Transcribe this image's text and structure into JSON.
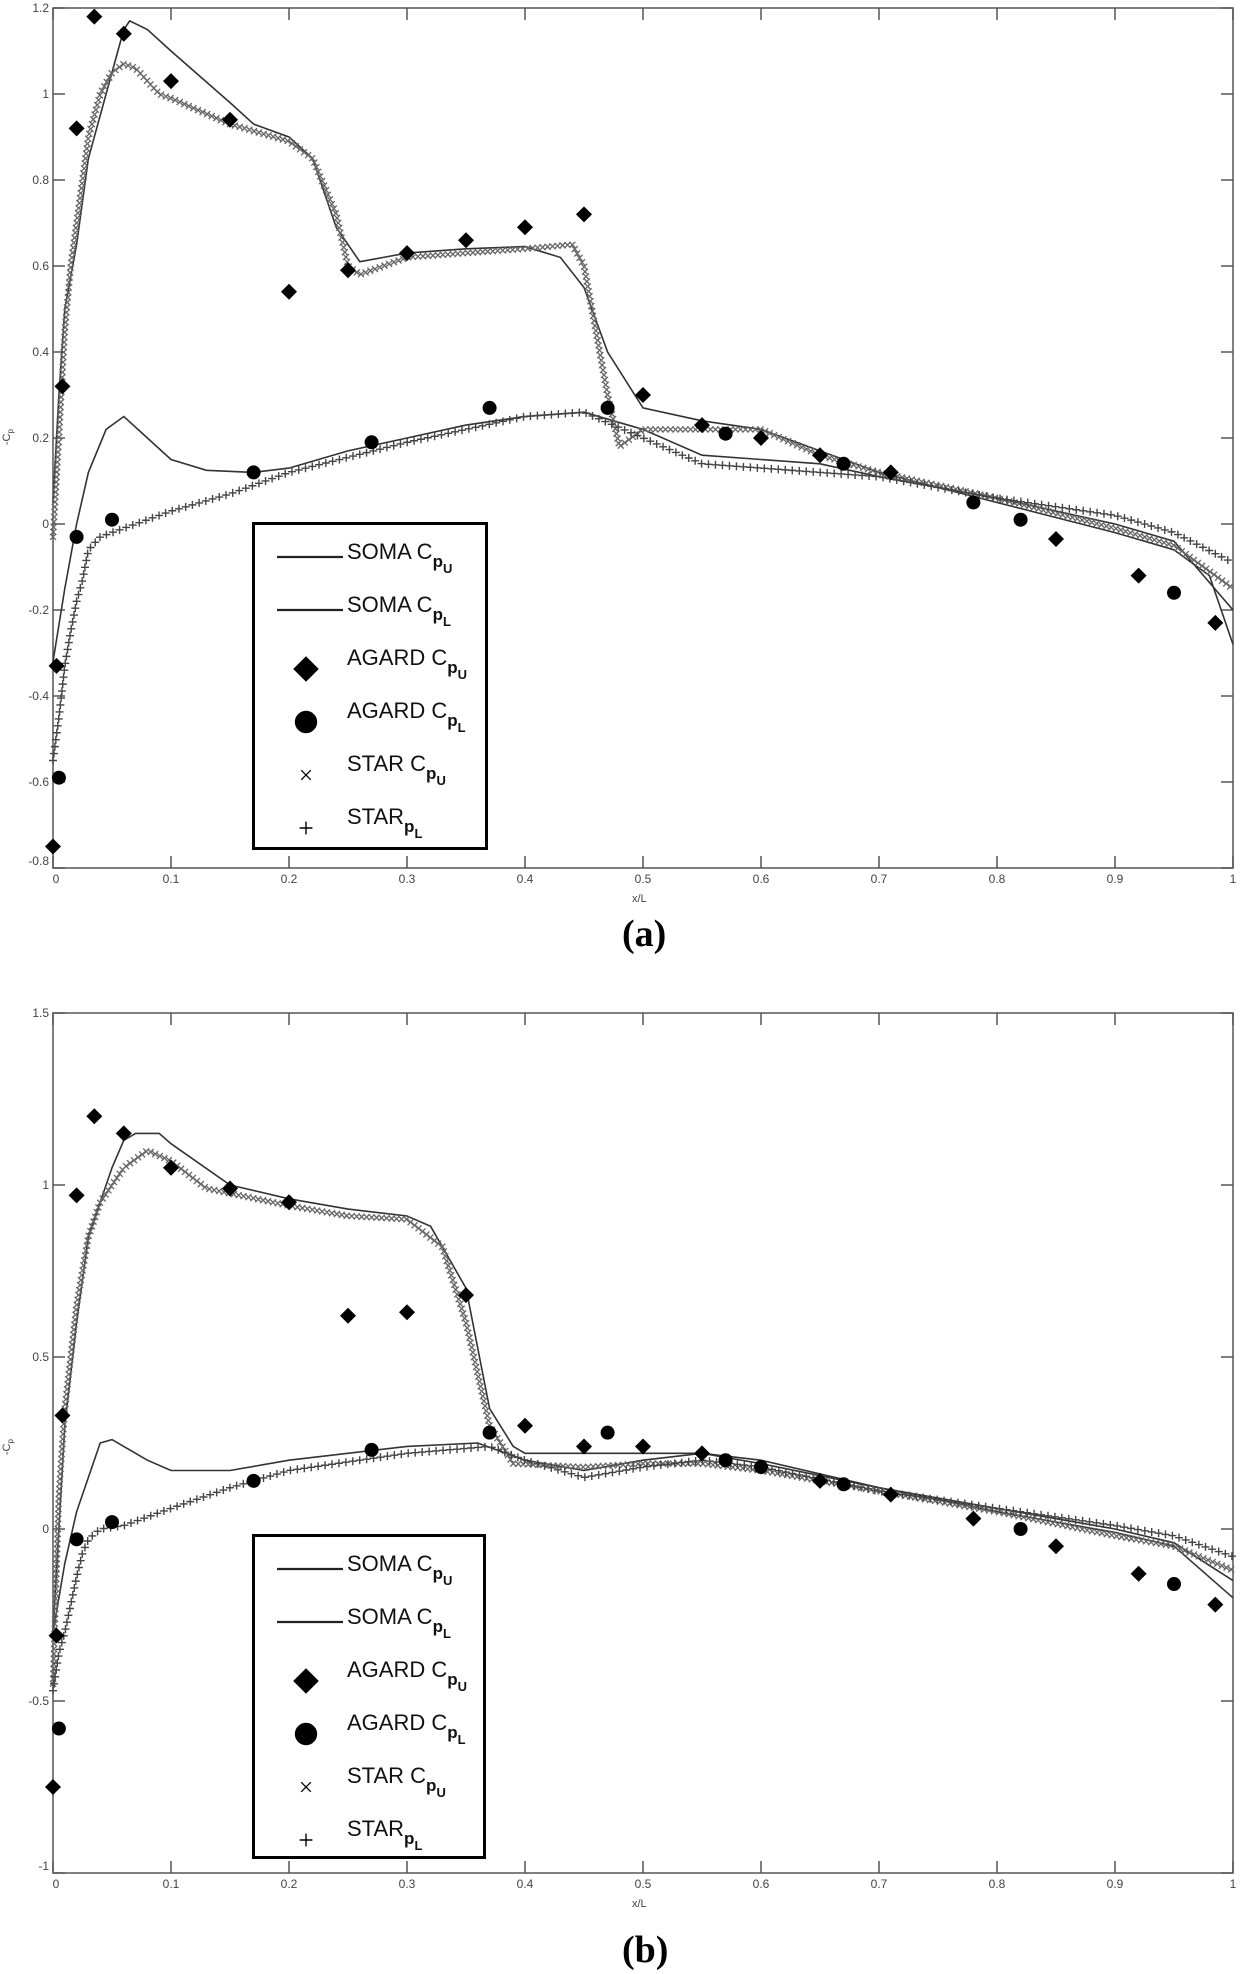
{
  "chart_data": [
    {
      "type": "line",
      "panel_caption": "(a)",
      "xlabel": "x/L",
      "ylabel": {
        "text": "-C",
        "sub": "p"
      },
      "xlim": [
        0,
        1
      ],
      "ylim": [
        -0.8,
        1.2
      ],
      "xticks": [
        "0",
        "0.1",
        "0.2",
        "0.3",
        "0.4",
        "0.5",
        "0.6",
        "0.7",
        "0.8",
        "0.9",
        "1"
      ],
      "yticks": [
        "-0.8",
        "-0.6",
        "-0.4",
        "-0.2",
        "0",
        "0.2",
        "0.4",
        "0.6",
        "0.8",
        "1",
        "1.2"
      ],
      "legend_placement": "lower-left",
      "legend": [
        {
          "text": "SOMA C",
          "sub": "p",
          "subsub": "U",
          "marker": "line"
        },
        {
          "text": "SOMA C",
          "sub": "p",
          "subsub": "L",
          "marker": "line"
        },
        {
          "text": "AGARD C",
          "sub": "p",
          "subsub": "U",
          "marker": "diamond"
        },
        {
          "text": "AGARD C",
          "sub": "p",
          "subsub": "L",
          "marker": "circle"
        },
        {
          "text": "STAR C",
          "sub": "p",
          "subsub": "U",
          "marker": "x"
        },
        {
          "text": "STAR",
          "sub": "p",
          "subsub": "L",
          "marker": "plus"
        }
      ],
      "series": [
        {
          "name": "SOMA Cp_U",
          "marker": "line",
          "color": "#333333",
          "x": [
            0,
            0.005,
            0.01,
            0.02,
            0.03,
            0.04,
            0.05,
            0.06,
            0.065,
            0.08,
            0.1,
            0.15,
            0.17,
            0.2,
            0.22,
            0.24,
            0.26,
            0.28,
            0.3,
            0.35,
            0.4,
            0.43,
            0.45,
            0.47,
            0.5,
            0.55,
            0.6,
            0.65,
            0.7,
            0.8,
            0.9,
            0.95,
            0.98,
            1.0
          ],
          "y": [
            0.05,
            0.3,
            0.5,
            0.65,
            0.85,
            0.95,
            1.05,
            1.15,
            1.17,
            1.15,
            1.1,
            0.98,
            0.93,
            0.9,
            0.85,
            0.69,
            0.61,
            0.62,
            0.63,
            0.64,
            0.645,
            0.62,
            0.55,
            0.4,
            0.27,
            0.24,
            0.22,
            0.17,
            0.12,
            0.05,
            -0.02,
            -0.06,
            -0.12,
            -0.28
          ]
        },
        {
          "name": "SOMA Cp_L",
          "marker": "line",
          "color": "#333333",
          "x": [
            0,
            0.01,
            0.02,
            0.03,
            0.045,
            0.06,
            0.08,
            0.1,
            0.13,
            0.17,
            0.2,
            0.25,
            0.3,
            0.35,
            0.4,
            0.45,
            0.5,
            0.55,
            0.6,
            0.65,
            0.7,
            0.8,
            0.9,
            0.95,
            1.0
          ],
          "y": [
            -0.32,
            -0.15,
            0.0,
            0.12,
            0.22,
            0.25,
            0.2,
            0.15,
            0.125,
            0.12,
            0.13,
            0.17,
            0.2,
            0.23,
            0.25,
            0.26,
            0.22,
            0.16,
            0.15,
            0.14,
            0.11,
            0.06,
            0.0,
            -0.04,
            -0.2
          ]
        },
        {
          "name": "STAR Cp_U",
          "marker": "x",
          "color": "#666666",
          "x": [
            0,
            0.005,
            0.01,
            0.015,
            0.02,
            0.03,
            0.04,
            0.05,
            0.06,
            0.07,
            0.09,
            0.1,
            0.15,
            0.2,
            0.22,
            0.24,
            0.25,
            0.26,
            0.3,
            0.35,
            0.4,
            0.44,
            0.45,
            0.46,
            0.47,
            0.48,
            0.5,
            0.55,
            0.6,
            0.65,
            0.7,
            0.8,
            0.9,
            0.95,
            1.0
          ],
          "y": [
            -0.03,
            0.2,
            0.45,
            0.6,
            0.7,
            0.9,
            1.0,
            1.05,
            1.07,
            1.06,
            1.0,
            0.99,
            0.93,
            0.89,
            0.85,
            0.72,
            0.6,
            0.58,
            0.62,
            0.63,
            0.64,
            0.65,
            0.6,
            0.45,
            0.3,
            0.18,
            0.22,
            0.22,
            0.22,
            0.16,
            0.12,
            0.06,
            -0.01,
            -0.05,
            -0.15
          ]
        },
        {
          "name": "STAR Cp_L",
          "marker": "plus",
          "color": "#444444",
          "x": [
            0,
            0.005,
            0.01,
            0.015,
            0.02,
            0.025,
            0.03,
            0.04,
            0.06,
            0.1,
            0.15,
            0.2,
            0.3,
            0.4,
            0.45,
            0.5,
            0.55,
            0.6,
            0.7,
            0.8,
            0.9,
            0.95,
            1.0
          ],
          "y": [
            -0.55,
            -0.45,
            -0.33,
            -0.25,
            -0.18,
            -0.13,
            -0.06,
            -0.03,
            -0.01,
            0.03,
            0.07,
            0.12,
            0.19,
            0.25,
            0.26,
            0.2,
            0.14,
            0.13,
            0.11,
            0.06,
            0.02,
            -0.02,
            -0.09
          ]
        },
        {
          "name": "AGARD Cp_U",
          "marker": "diamond",
          "color": "#000000",
          "x": [
            0,
            0.003,
            0.008,
            0.02,
            0.035,
            0.06,
            0.1,
            0.15,
            0.2,
            0.25,
            0.3,
            0.35,
            0.4,
            0.45,
            0.5,
            0.55,
            0.6,
            0.65,
            0.71,
            0.85,
            0.92,
            0.985
          ],
          "y": [
            -0.75,
            -0.33,
            0.32,
            0.92,
            1.18,
            1.14,
            1.03,
            0.94,
            0.54,
            0.59,
            0.63,
            0.66,
            0.69,
            0.72,
            0.3,
            0.23,
            0.2,
            0.16,
            0.12,
            -0.035,
            -0.12,
            -0.23
          ]
        },
        {
          "name": "AGARD Cp_L",
          "marker": "circle",
          "color": "#000000",
          "x": [
            0.005,
            0.02,
            0.05,
            0.17,
            0.27,
            0.37,
            0.47,
            0.57,
            0.67,
            0.78,
            0.82,
            0.95
          ],
          "y": [
            -0.59,
            -0.03,
            0.01,
            0.12,
            0.19,
            0.27,
            0.27,
            0.21,
            0.14,
            0.05,
            0.01,
            -0.16
          ]
        }
      ]
    },
    {
      "type": "line",
      "panel_caption": "(b)",
      "xlabel": "x/L",
      "ylabel": {
        "text": "-C",
        "sub": "p"
      },
      "xlim": [
        0,
        1
      ],
      "ylim": [
        -1,
        1.5
      ],
      "xticks": [
        "0",
        "0.1",
        "0.2",
        "0.3",
        "0.4",
        "0.5",
        "0.6",
        "0.7",
        "0.8",
        "0.9",
        "1"
      ],
      "yticks": [
        "-1",
        "-0.5",
        "0",
        "0.5",
        "1",
        "1.5"
      ],
      "legend_placement": "lower-left",
      "legend": [
        {
          "text": "SOMA C",
          "sub": "p",
          "subsub": "U",
          "marker": "line"
        },
        {
          "text": "SOMA C",
          "sub": "p",
          "subsub": "L",
          "marker": "line"
        },
        {
          "text": "AGARD C",
          "sub": "p",
          "subsub": "U",
          "marker": "diamond"
        },
        {
          "text": "AGARD C",
          "sub": "p",
          "subsub": "L",
          "marker": "circle"
        },
        {
          "text": "STAR C",
          "sub": "p",
          "subsub": "U",
          "marker": "x"
        },
        {
          "text": "STAR",
          "sub": "p",
          "subsub": "L",
          "marker": "plus"
        }
      ],
      "series": [
        {
          "name": "SOMA Cp_U",
          "marker": "line",
          "color": "#333333",
          "x": [
            0,
            0.01,
            0.02,
            0.03,
            0.04,
            0.05,
            0.06,
            0.07,
            0.09,
            0.1,
            0.15,
            0.2,
            0.25,
            0.3,
            0.32,
            0.35,
            0.37,
            0.39,
            0.4,
            0.5,
            0.55,
            0.6,
            0.7,
            0.8,
            0.9,
            0.95,
            1.0
          ],
          "y": [
            -0.3,
            0.3,
            0.6,
            0.85,
            0.95,
            1.05,
            1.13,
            1.15,
            1.15,
            1.12,
            1.0,
            0.96,
            0.93,
            0.91,
            0.88,
            0.7,
            0.35,
            0.24,
            0.22,
            0.22,
            0.22,
            0.2,
            0.12,
            0.05,
            -0.01,
            -0.05,
            -0.2
          ]
        },
        {
          "name": "SOMA Cp_L",
          "marker": "line",
          "color": "#333333",
          "x": [
            0,
            0.01,
            0.02,
            0.03,
            0.04,
            0.05,
            0.08,
            0.1,
            0.15,
            0.2,
            0.3,
            0.36,
            0.4,
            0.45,
            0.5,
            0.55,
            0.6,
            0.7,
            0.8,
            0.9,
            0.95,
            1.0
          ],
          "y": [
            -0.3,
            -0.1,
            0.05,
            0.15,
            0.25,
            0.26,
            0.2,
            0.17,
            0.17,
            0.2,
            0.24,
            0.25,
            0.2,
            0.17,
            0.2,
            0.22,
            0.19,
            0.12,
            0.06,
            0.0,
            -0.04,
            -0.15
          ]
        },
        {
          "name": "STAR Cp_U",
          "marker": "x",
          "color": "#666666",
          "x": [
            0,
            0.005,
            0.01,
            0.02,
            0.03,
            0.04,
            0.06,
            0.08,
            0.1,
            0.13,
            0.2,
            0.25,
            0.3,
            0.33,
            0.35,
            0.37,
            0.39,
            0.45,
            0.5,
            0.55,
            0.6,
            0.7,
            0.8,
            0.9,
            0.95,
            1.0
          ],
          "y": [
            -0.45,
            0.1,
            0.35,
            0.65,
            0.85,
            0.95,
            1.05,
            1.1,
            1.07,
            0.99,
            0.94,
            0.91,
            0.9,
            0.82,
            0.6,
            0.3,
            0.19,
            0.18,
            0.19,
            0.19,
            0.17,
            0.11,
            0.05,
            -0.02,
            -0.05,
            -0.12
          ]
        },
        {
          "name": "STAR Cp_L",
          "marker": "plus",
          "color": "#444444",
          "x": [
            0,
            0.005,
            0.01,
            0.015,
            0.02,
            0.025,
            0.03,
            0.04,
            0.06,
            0.1,
            0.15,
            0.2,
            0.3,
            0.37,
            0.4,
            0.45,
            0.5,
            0.55,
            0.6,
            0.7,
            0.8,
            0.9,
            0.95,
            1.0
          ],
          "y": [
            -0.47,
            -0.36,
            -0.3,
            -0.22,
            -0.14,
            -0.07,
            -0.03,
            0.0,
            0.01,
            0.06,
            0.12,
            0.17,
            0.22,
            0.24,
            0.2,
            0.15,
            0.18,
            0.2,
            0.18,
            0.11,
            0.06,
            0.01,
            -0.02,
            -0.08
          ]
        },
        {
          "name": "AGARD Cp_U",
          "marker": "diamond",
          "color": "#000000",
          "x": [
            0,
            0.003,
            0.008,
            0.02,
            0.035,
            0.06,
            0.1,
            0.15,
            0.2,
            0.25,
            0.3,
            0.35,
            0.4,
            0.45,
            0.5,
            0.55,
            0.65,
            0.71,
            0.78,
            0.85,
            0.92,
            0.985
          ],
          "y": [
            -0.75,
            -0.31,
            0.33,
            0.97,
            1.2,
            1.15,
            1.05,
            0.99,
            0.95,
            0.62,
            0.63,
            0.68,
            0.3,
            0.24,
            0.24,
            0.22,
            0.14,
            0.1,
            0.03,
            -0.05,
            -0.13,
            -0.22
          ]
        },
        {
          "name": "AGARD Cp_L",
          "marker": "circle",
          "color": "#000000",
          "x": [
            0.005,
            0.02,
            0.05,
            0.17,
            0.27,
            0.37,
            0.47,
            0.57,
            0.6,
            0.67,
            0.82,
            0.95
          ],
          "y": [
            -0.58,
            -0.03,
            0.02,
            0.14,
            0.23,
            0.28,
            0.28,
            0.2,
            0.18,
            0.13,
            0.0,
            -0.16
          ]
        }
      ]
    }
  ]
}
